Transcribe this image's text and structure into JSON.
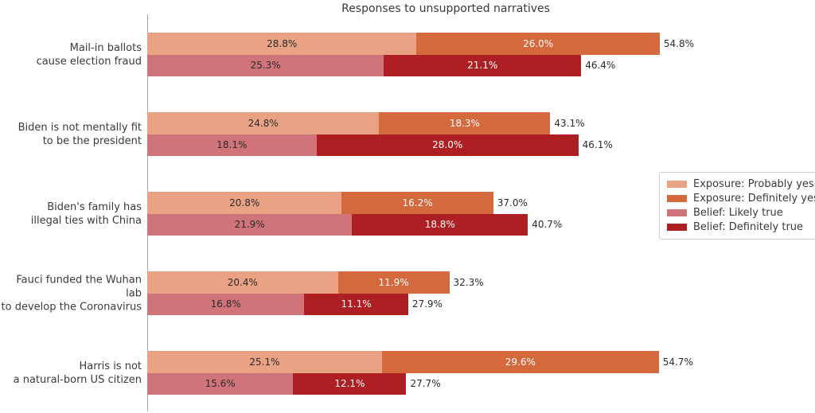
{
  "chart_data": {
    "type": "bar",
    "orientation": "horizontal",
    "stacked": true,
    "title": "Responses to unsupported narratives",
    "categories": [
      {
        "lines": [
          "Mail-in ballots",
          "cause election fraud"
        ]
      },
      {
        "lines": [
          "Biden is not mentally fit",
          "to be the president"
        ]
      },
      {
        "lines": [
          "Biden's family has",
          "illegal ties with China"
        ]
      },
      {
        "lines": [
          "Fauci funded the Wuhan lab",
          "to develop the Coronavirus"
        ]
      },
      {
        "lines": [
          "Harris is not",
          "a natural-born US citizen"
        ]
      }
    ],
    "series": [
      {
        "name": "Exposure: Probably yes",
        "row": "exposure",
        "color": "#E9A284",
        "label_color": "#2B2B2B",
        "values": [
          28.8,
          24.8,
          20.8,
          20.4,
          25.1
        ]
      },
      {
        "name": "Exposure: Definitely yes",
        "row": "exposure",
        "color": "#D4693E",
        "label_color": "#FFFFFF",
        "values": [
          26.0,
          18.3,
          16.2,
          11.9,
          29.6
        ]
      },
      {
        "name": "Belief: Likely true",
        "row": "belief",
        "color": "#D0737A",
        "label_color": "#2B2B2B",
        "values": [
          25.3,
          18.1,
          21.9,
          16.8,
          15.6
        ]
      },
      {
        "name": "Belief: Definitely true",
        "row": "belief",
        "color": "#AE1F24",
        "label_color": "#FFFFFF",
        "values": [
          21.1,
          28.0,
          18.8,
          11.1,
          12.1
        ]
      }
    ],
    "totals": {
      "exposure": [
        54.8,
        43.1,
        37.0,
        32.3,
        54.7
      ],
      "belief": [
        46.4,
        46.1,
        40.7,
        27.9,
        27.7
      ]
    },
    "value_suffix": "%",
    "xlim": [
      0,
      60
    ],
    "grid": false,
    "legend_position": "center right",
    "colors": {
      "background": "#FFFFFF",
      "axis_spine": "#A6A6A6",
      "title_text": "#3A3A3A",
      "category_text": "#3A3A3A",
      "total_label_text": "#2B2B2B",
      "legend_border": "#CCCCCC"
    }
  }
}
